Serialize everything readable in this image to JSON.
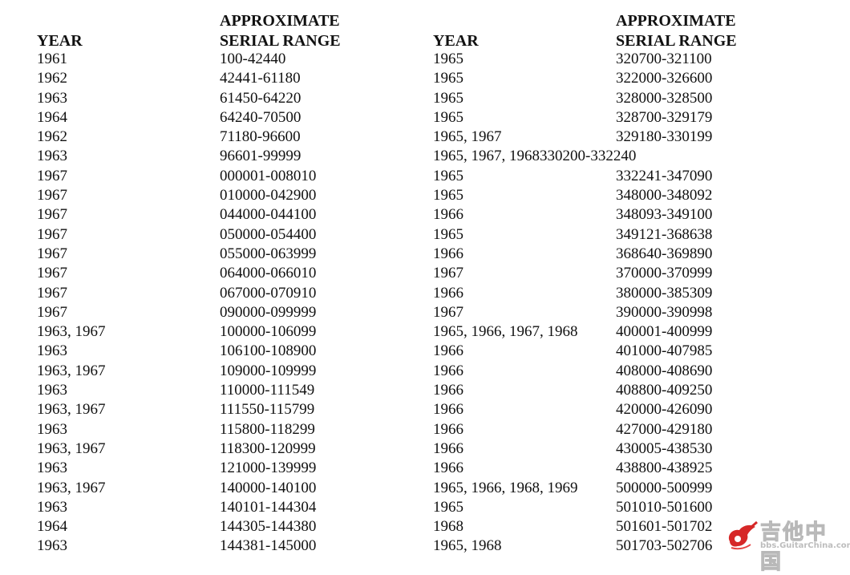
{
  "headers": {
    "year": "YEAR",
    "serial_line1": "APPROXIMATE",
    "serial_line2": "SERIAL RANGE"
  },
  "left_rows": [
    {
      "year": "1961",
      "serial": "100-42440"
    },
    {
      "year": "1962",
      "serial": "42441-61180"
    },
    {
      "year": "1963",
      "serial": "61450-64220"
    },
    {
      "year": "1964",
      "serial": "64240-70500"
    },
    {
      "year": "1962",
      "serial": "71180-96600"
    },
    {
      "year": "1963",
      "serial": "96601-99999"
    },
    {
      "year": "1967",
      "serial": "000001-008010"
    },
    {
      "year": "1967",
      "serial": "010000-042900"
    },
    {
      "year": "1967",
      "serial": "044000-044100"
    },
    {
      "year": "1967",
      "serial": "050000-054400"
    },
    {
      "year": "1967",
      "serial": "055000-063999"
    },
    {
      "year": "1967",
      "serial": "064000-066010"
    },
    {
      "year": "1967",
      "serial": "067000-070910"
    },
    {
      "year": "1967",
      "serial": "090000-099999"
    },
    {
      "year": "1963, 1967",
      "serial": "100000-106099"
    },
    {
      "year": "1963",
      "serial": "106100-108900"
    },
    {
      "year": "1963, 1967",
      "serial": "109000-109999"
    },
    {
      "year": "1963",
      "serial": "110000-111549"
    },
    {
      "year": "1963, 1967",
      "serial": "111550-115799"
    },
    {
      "year": "1963",
      "serial": "115800-118299"
    },
    {
      "year": "1963, 1967",
      "serial": "118300-120999"
    },
    {
      "year": "1963",
      "serial": "121000-139999"
    },
    {
      "year": "1963, 1967",
      "serial": "140000-140100"
    },
    {
      "year": "1963",
      "serial": "140101-144304"
    },
    {
      "year": "1964",
      "serial": "144305-144380"
    },
    {
      "year": "1963",
      "serial": "144381-145000"
    }
  ],
  "right_rows": [
    {
      "year": "1965",
      "serial": "320700-321100"
    },
    {
      "year": "1965",
      "serial": "322000-326600"
    },
    {
      "year": "1965",
      "serial": "328000-328500"
    },
    {
      "year": "1965",
      "serial": "328700-329179"
    },
    {
      "year": "1965, 1967",
      "serial": "329180-330199"
    },
    {
      "year": "1965, 1967, 1968",
      "serial": "330200-332240",
      "merged": true
    },
    {
      "year": "1965",
      "serial": "332241-347090"
    },
    {
      "year": "1965",
      "serial": "348000-348092"
    },
    {
      "year": "1966",
      "serial": "348093-349100"
    },
    {
      "year": "1965",
      "serial": "349121-368638"
    },
    {
      "year": "1966",
      "serial": "368640-369890"
    },
    {
      "year": "1967",
      "serial": "370000-370999"
    },
    {
      "year": "1966",
      "serial": "380000-385309"
    },
    {
      "year": "1967",
      "serial": "390000-390998"
    },
    {
      "year": "1965, 1966, 1967, 1968",
      "serial": "400001-400999"
    },
    {
      "year": "1966",
      "serial": "401000-407985"
    },
    {
      "year": "1966",
      "serial": "408000-408690"
    },
    {
      "year": "1966",
      "serial": "408800-409250"
    },
    {
      "year": "1966",
      "serial": "420000-426090"
    },
    {
      "year": "1966",
      "serial": "427000-429180"
    },
    {
      "year": "1966",
      "serial": "430005-438530"
    },
    {
      "year": "1966",
      "serial": "438800-438925"
    },
    {
      "year": "1965, 1966, 1968, 1969",
      "serial": "500000-500999"
    },
    {
      "year": "1965",
      "serial": "501010-501600"
    },
    {
      "year": "1968",
      "serial": "501601-501702"
    },
    {
      "year": "1965, 1968",
      "serial": "501703-502706"
    }
  ],
  "watermark": {
    "name": "吉他中国",
    "url": "bbs.GuitarChina.com",
    "icon": "guitar-logo-icon",
    "accent_color": "#d62828"
  }
}
